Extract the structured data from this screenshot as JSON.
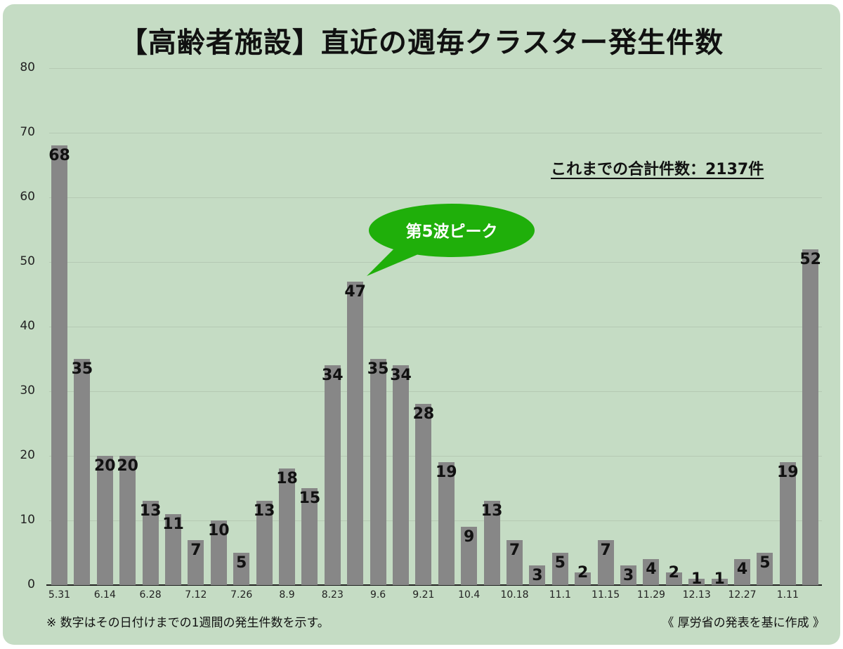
{
  "title": "【高齢者施設】直近の週毎クラスター発生件数",
  "total_label": "これまでの合計件数：2137件",
  "callout": "第5波ピーク",
  "footnote": "※ 数字はその日付けまでの1週間の発生件数を示す。",
  "source": "《 厚労省の発表を基に作成 》",
  "colors": {
    "background": "#c5dcc4",
    "bar": "#878787",
    "callout": "#1faf0a"
  },
  "chart_data": {
    "type": "bar",
    "title": "【高齢者施設】直近の週毎クラスター発生件数",
    "xlabel": "",
    "ylabel": "",
    "ylim": [
      0,
      80
    ],
    "yticks": [
      0,
      10,
      20,
      30,
      40,
      50,
      60,
      70,
      80
    ],
    "grid": true,
    "legend": "none",
    "x_tick_labels": [
      "5.31",
      "6.14",
      "6.28",
      "7.12",
      "7.26",
      "8.9",
      "8.23",
      "9.6",
      "9.21",
      "10.4",
      "10.18",
      "11.1",
      "11.15",
      "11.29",
      "12.13",
      "12.27",
      "1.11"
    ],
    "x_tick_label_every": 2,
    "values": [
      68,
      35,
      20,
      20,
      13,
      11,
      7,
      10,
      5,
      13,
      18,
      15,
      34,
      47,
      35,
      34,
      28,
      19,
      9,
      13,
      7,
      3,
      5,
      2,
      7,
      3,
      4,
      2,
      1,
      1,
      4,
      5,
      19,
      52
    ],
    "annotations": [
      {
        "text": "第5波ピーク",
        "target_index": 13
      },
      {
        "text": "これまでの合計件数：2137件"
      }
    ]
  }
}
